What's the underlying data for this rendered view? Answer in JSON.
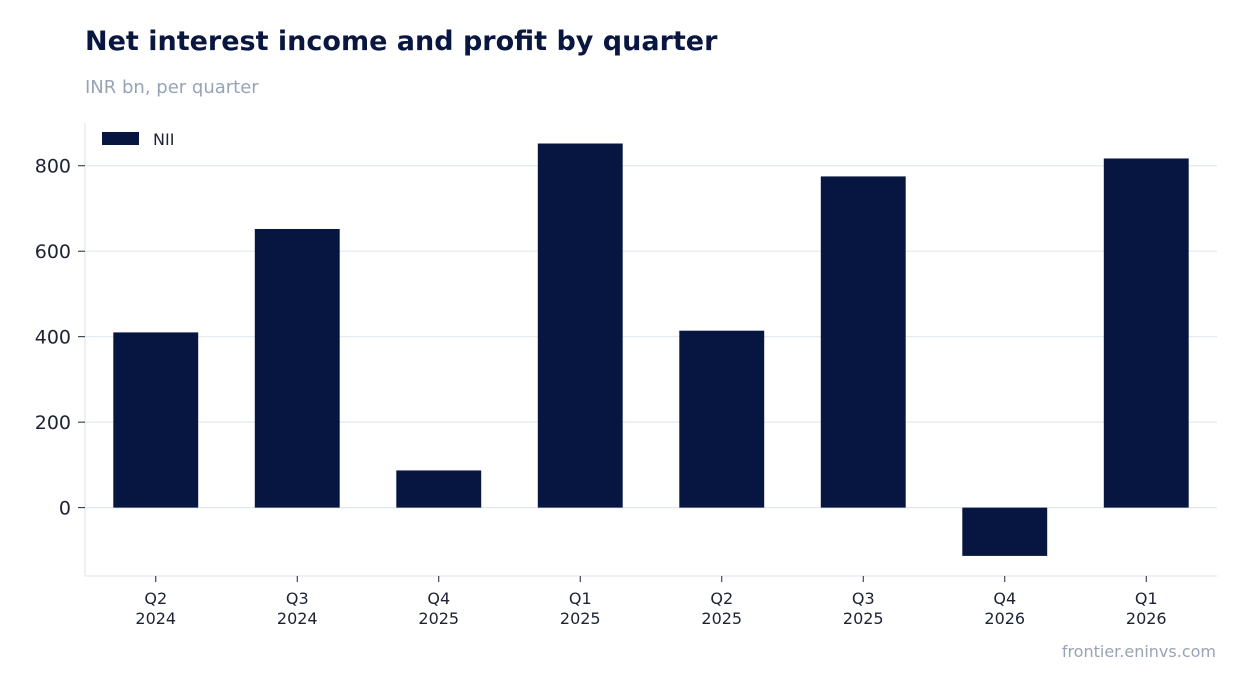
{
  "title": "Net interest income and profit by quarter",
  "subtitle": "INR bn, per quarter",
  "source": "frontier.eninvs.com",
  "colors": {
    "bar": "#061640",
    "grid": "#e3e7ef",
    "axis": "#e3e7ef",
    "text": "#1d2333",
    "muted": "#98a3b5"
  },
  "chart_data": {
    "type": "bar",
    "title": "Net interest income and profit by quarter",
    "subtitle": "INR bn, per quarter",
    "categories": [
      [
        "Q2",
        "2024"
      ],
      [
        "Q3",
        "2024"
      ],
      [
        "Q4",
        "2025"
      ],
      [
        "Q1",
        "2025"
      ],
      [
        "Q2",
        "2025"
      ],
      [
        "Q3",
        "2025"
      ],
      [
        "Q4",
        "2026"
      ],
      [
        "Q1",
        "2026"
      ]
    ],
    "series": [
      {
        "name": "NII",
        "values": [
          410,
          652,
          87,
          852,
          414,
          775,
          -113,
          817
        ]
      }
    ],
    "yticks": [
      0,
      200,
      400,
      600,
      800
    ],
    "ylim": [
      -160,
      900
    ],
    "grid": true,
    "legend": "top-left",
    "xlabel": "",
    "ylabel": ""
  }
}
